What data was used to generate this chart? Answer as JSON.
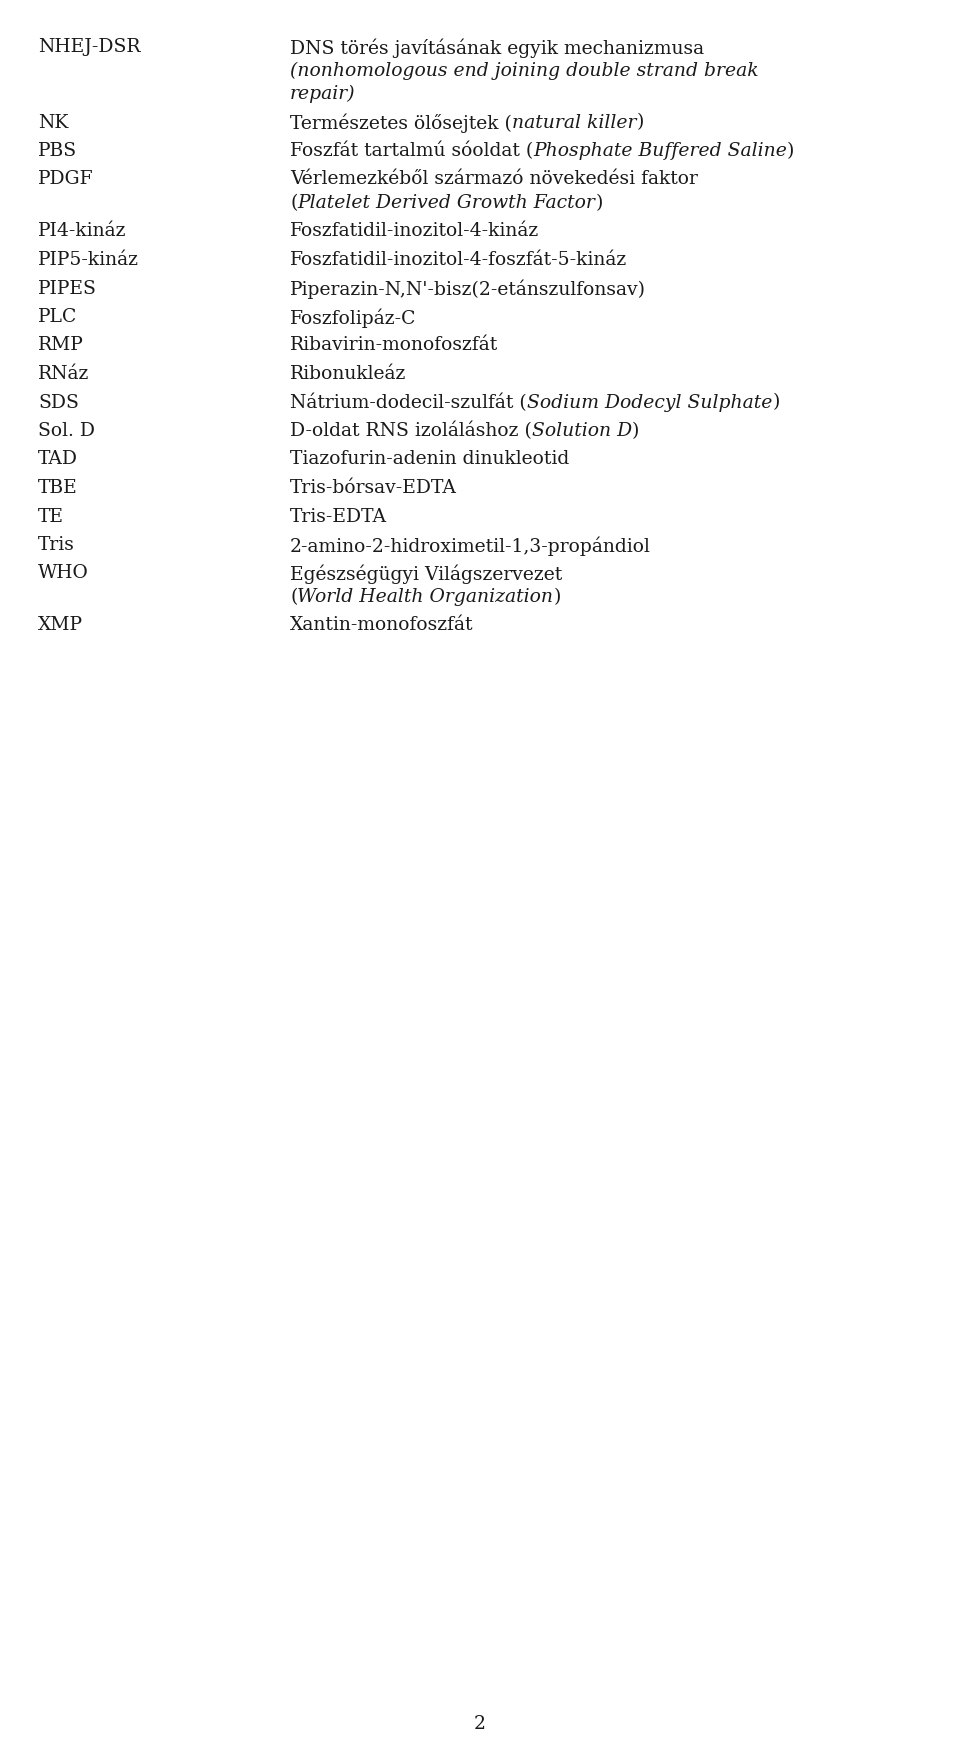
{
  "background_color": "#ffffff",
  "text_color": "#1a1a1a",
  "font_size": 13.5,
  "page_number": "2",
  "entries": [
    {
      "abbr": "NHEJ-DSR",
      "lines": [
        [
          {
            "text": "DNS törés javításának egyik mechanizmusa",
            "italic": false
          }
        ],
        [
          {
            "text": "(nonhomologous end joining double strand break",
            "italic": true
          }
        ],
        [
          {
            "text": "repair)",
            "italic": true
          }
        ]
      ]
    },
    {
      "abbr": "NK",
      "lines": [
        [
          {
            "text": "Természetes ölősejtek (",
            "italic": false
          },
          {
            "text": "natural killer",
            "italic": true
          },
          {
            "text": ")",
            "italic": false
          }
        ]
      ]
    },
    {
      "abbr": "PBS",
      "lines": [
        [
          {
            "text": "Foszfát tartalmú sóoldat (",
            "italic": false
          },
          {
            "text": "Phosphate Buffered Saline",
            "italic": true
          },
          {
            "text": ")",
            "italic": false
          }
        ]
      ]
    },
    {
      "abbr": "PDGF",
      "lines": [
        [
          {
            "text": "Vérlemezkéből származó növekedési faktor",
            "italic": false
          }
        ],
        [
          {
            "text": "(",
            "italic": false
          },
          {
            "text": "Platelet Derived Growth Factor",
            "italic": true
          },
          {
            "text": ")",
            "italic": false
          }
        ]
      ]
    },
    {
      "abbr": "PI4-kináz",
      "lines": [
        [
          {
            "text": "Foszfatidil-inozitol-4-kináz",
            "italic": false
          }
        ]
      ]
    },
    {
      "abbr": "PIP5-kináz",
      "lines": [
        [
          {
            "text": "Foszfatidil-inozitol-4-foszfát-5-kináz",
            "italic": false
          }
        ]
      ]
    },
    {
      "abbr": "PIPES",
      "lines": [
        [
          {
            "text": "Piperazin-N,N'-bisz(2-etánszulfonsav)",
            "italic": false
          }
        ]
      ]
    },
    {
      "abbr": "PLC",
      "lines": [
        [
          {
            "text": "Foszfolipáz-C",
            "italic": false
          }
        ]
      ]
    },
    {
      "abbr": "RMP",
      "lines": [
        [
          {
            "text": "Ribavirin-monofoszfát",
            "italic": false
          }
        ]
      ]
    },
    {
      "abbr": "RNáz",
      "lines": [
        [
          {
            "text": "Ribonukleáz",
            "italic": false
          }
        ]
      ]
    },
    {
      "abbr": "SDS",
      "lines": [
        [
          {
            "text": "Nátrium-dodecil-szulfát (",
            "italic": false
          },
          {
            "text": "Sodium Dodecyl Sulphate",
            "italic": true
          },
          {
            "text": ")",
            "italic": false
          }
        ]
      ]
    },
    {
      "abbr": "Sol. D",
      "lines": [
        [
          {
            "text": "D-oldat RNS izoláláshoz (",
            "italic": false
          },
          {
            "text": "Solution D",
            "italic": true
          },
          {
            "text": ")",
            "italic": false
          }
        ]
      ]
    },
    {
      "abbr": "TAD",
      "lines": [
        [
          {
            "text": "Tiazofurin-adenin dinukleotid",
            "italic": false
          }
        ]
      ]
    },
    {
      "abbr": "TBE",
      "lines": [
        [
          {
            "text": "Tris-bórsav-EDTA",
            "italic": false
          }
        ]
      ]
    },
    {
      "abbr": "TE",
      "lines": [
        [
          {
            "text": "Tris-EDTA",
            "italic": false
          }
        ]
      ]
    },
    {
      "abbr": "Tris",
      "lines": [
        [
          {
            "text": "2-amino-2-hidroximetil-1,3-propándiol",
            "italic": false
          }
        ]
      ]
    },
    {
      "abbr": "WHO",
      "lines": [
        [
          {
            "text": "Egészségügyi Világszervezet",
            "italic": false
          }
        ],
        [
          {
            "text": "(",
            "italic": false
          },
          {
            "text": "World Health Organization",
            "italic": true
          },
          {
            "text": ")",
            "italic": false
          }
        ]
      ]
    },
    {
      "abbr": "XMP",
      "lines": [
        [
          {
            "text": "Xantin-monofoszfát",
            "italic": false
          }
        ]
      ]
    }
  ]
}
